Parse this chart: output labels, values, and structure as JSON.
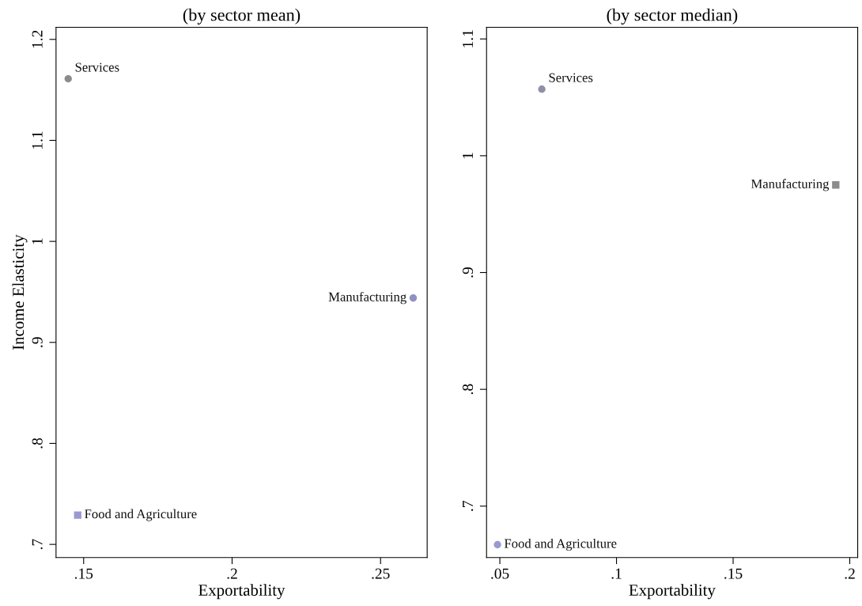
{
  "chart_data": [
    {
      "type": "scatter",
      "title": "(by sector mean)",
      "xlabel": "Exportability",
      "ylabel": "Income Elasticity",
      "xlim": [
        0.1407,
        0.2657
      ],
      "ylim": [
        0.687,
        1.212
      ],
      "xticks": [
        {
          "value": 0.15,
          "label": ".15"
        },
        {
          "value": 0.2,
          "label": ".2"
        },
        {
          "value": 0.25,
          "label": ".25"
        }
      ],
      "yticks": [
        {
          "value": 0.7,
          "label": ".7"
        },
        {
          "value": 0.8,
          "label": ".8"
        },
        {
          "value": 0.9,
          "label": ".9"
        },
        {
          "value": 1,
          "label": "1"
        },
        {
          "value": 1.1,
          "label": "1.1"
        },
        {
          "value": 1.2,
          "label": "1.2"
        }
      ],
      "grid": false,
      "legend": false,
      "series": [
        {
          "name": "Services",
          "color": "#8c8c8c",
          "x": [
            0.1448
          ],
          "values": [
            1.161
          ],
          "marker": "circle"
        },
        {
          "name": "Manufacturing",
          "color": "#9090c4",
          "x": [
            0.261
          ],
          "values": [
            0.944
          ],
          "marker": "circle"
        },
        {
          "name": "Food and Agriculture",
          "color": "#9a9ad2",
          "x": [
            0.148
          ],
          "values": [
            0.729
          ],
          "marker": "square"
        }
      ]
    },
    {
      "type": "scatter",
      "title": "(by sector median)",
      "xlabel": "Exportability",
      "xlim": [
        0.0443,
        0.2034
      ],
      "ylim": [
        0.656,
        1.11
      ],
      "xticks": [
        {
          "value": 0.05,
          "label": ".05"
        },
        {
          "value": 0.1,
          "label": ".1"
        },
        {
          "value": 0.15,
          "label": ".15"
        },
        {
          "value": 0.2,
          "label": ".2"
        }
      ],
      "yticks": [
        {
          "value": 0.7,
          "label": ".7"
        },
        {
          "value": 0.8,
          "label": ".8"
        },
        {
          "value": 0.9,
          "label": ".9"
        },
        {
          "value": 1,
          "label": "1"
        },
        {
          "value": 1.1,
          "label": "1.1"
        }
      ],
      "grid": false,
      "legend": false,
      "series": [
        {
          "name": "Services",
          "color": "#8f8fa8",
          "x": [
            0.068
          ],
          "values": [
            1.057
          ],
          "marker": "circle"
        },
        {
          "name": "Manufacturing",
          "color": "#8c8c8c",
          "x": [
            0.194
          ],
          "values": [
            0.975
          ],
          "marker": "square"
        },
        {
          "name": "Food and Agriculture",
          "color": "#9a9ad2",
          "x": [
            0.049
          ],
          "values": [
            0.667
          ],
          "marker": "circle"
        }
      ]
    }
  ]
}
